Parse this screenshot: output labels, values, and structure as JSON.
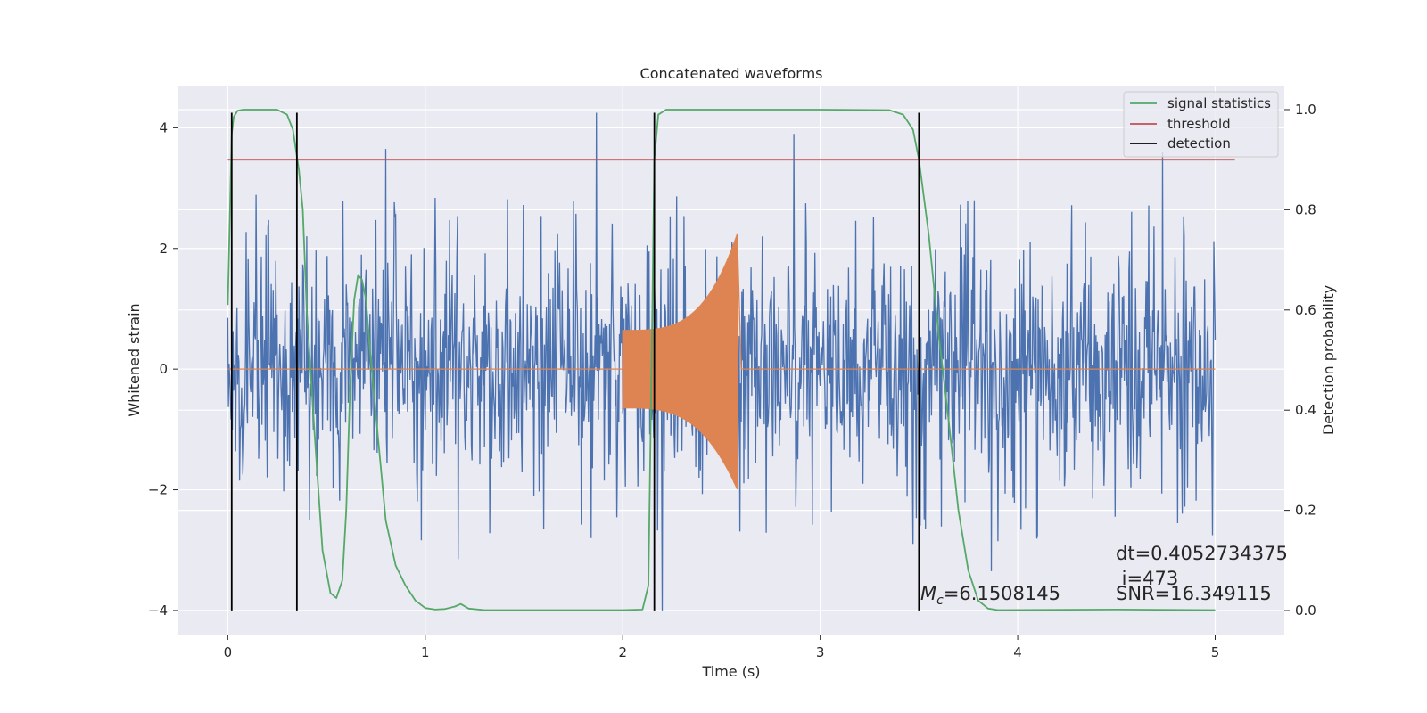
{
  "chart_data": {
    "type": "line",
    "title": "Concatenated waveforms",
    "xlabel": "Time (s)",
    "ylabel": "Whitened strain",
    "ylabel_right": "Detection probability",
    "xlim": [
      -0.25,
      5.35
    ],
    "ylim": [
      -4.4,
      4.7
    ],
    "ylim_right": [
      -0.048,
      1.048
    ],
    "x_ticks": [
      0,
      1,
      2,
      3,
      4,
      5
    ],
    "y_ticks": [
      -4,
      -2,
      0,
      2,
      4
    ],
    "y_right_ticks": [
      0.0,
      0.2,
      0.4,
      0.6,
      0.8,
      1.0
    ],
    "grid": true,
    "legend_location": "upper right",
    "legend": [
      {
        "label": "signal statistics",
        "color": "#55a868"
      },
      {
        "label": "threshold",
        "color": "#c44e52"
      },
      {
        "label": "detection",
        "color": "#000000"
      }
    ],
    "series": [
      {
        "kind": "noisy_strain",
        "color": "#4c72b0",
        "x_range": [
          0,
          5
        ],
        "typical_amplitude": 2.2,
        "peak_max": 4.25,
        "peak_min": -4.0
      },
      {
        "kind": "chirp",
        "color": "#dd8452",
        "x_range": [
          2.0,
          2.58
        ],
        "start_amplitude": 0.65,
        "peak_amplitude": 2.25,
        "rest_value": 0
      },
      {
        "name": "signal statistics",
        "axis": "right",
        "color": "#55a868",
        "x": [
          0,
          0.01,
          0.02,
          0.03,
          0.05,
          0.08,
          0.15,
          0.25,
          0.3,
          0.33,
          0.36,
          0.38,
          0.4,
          0.44,
          0.48,
          0.52,
          0.55,
          0.58,
          0.6,
          0.62,
          0.64,
          0.66,
          0.68,
          0.7,
          0.72,
          0.76,
          0.8,
          0.85,
          0.9,
          0.95,
          1.0,
          1.05,
          1.1,
          1.15,
          1.18,
          1.22,
          1.3,
          1.6,
          2.0,
          2.1,
          2.13,
          2.15,
          2.16,
          2.18,
          2.22,
          2.3,
          3.0,
          3.35,
          3.42,
          3.47,
          3.5,
          3.55,
          3.6,
          3.65,
          3.7,
          3.75,
          3.8,
          3.85,
          3.9,
          4.5,
          5.0
        ],
        "y": [
          0.61,
          0.78,
          0.95,
          0.985,
          0.998,
          1.0,
          1.0,
          1.0,
          0.99,
          0.96,
          0.88,
          0.8,
          0.6,
          0.35,
          0.12,
          0.035,
          0.025,
          0.06,
          0.2,
          0.45,
          0.62,
          0.67,
          0.66,
          0.62,
          0.52,
          0.35,
          0.18,
          0.09,
          0.05,
          0.02,
          0.005,
          0.002,
          0.003,
          0.008,
          0.013,
          0.004,
          0.001,
          0.001,
          0.001,
          0.002,
          0.05,
          0.6,
          0.9,
          0.99,
          1.0,
          1.0,
          1.0,
          0.999,
          0.99,
          0.96,
          0.9,
          0.75,
          0.55,
          0.38,
          0.2,
          0.08,
          0.02,
          0.004,
          0.001,
          0.002,
          0.001
        ]
      },
      {
        "name": "threshold",
        "axis": "right",
        "color": "#c44e52",
        "x": [
          0,
          5.1
        ],
        "y": [
          0.9,
          0.9
        ]
      },
      {
        "name": "detection",
        "axis": "left",
        "color": "#000000",
        "type": "vlines",
        "x": [
          0.02,
          0.35,
          2.16,
          3.5
        ],
        "ymin": -4,
        "ymax": 4.25
      }
    ],
    "annotations": [
      {
        "id": "dt",
        "text": "dt=0.4052734375"
      },
      {
        "id": "i",
        "text": " i=473"
      },
      {
        "id": "mc_sym",
        "text": "M"
      },
      {
        "id": "mc_sub",
        "text": "c"
      },
      {
        "id": "mc_val",
        "text": "=6.1508145"
      },
      {
        "id": "snr",
        "text": "SNR=16.349115"
      }
    ]
  }
}
